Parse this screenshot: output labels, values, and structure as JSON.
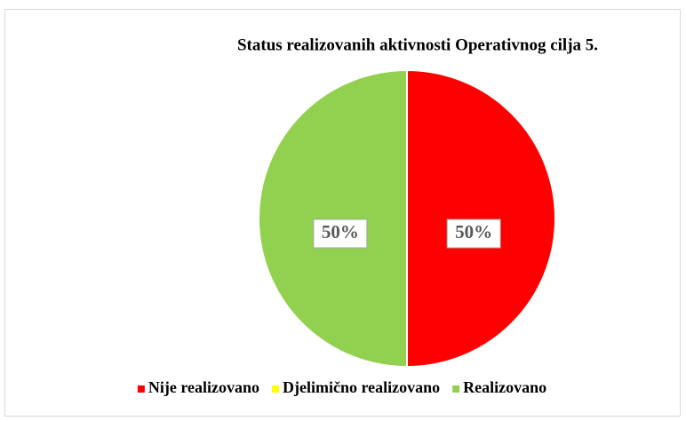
{
  "chart_data": {
    "type": "pie",
    "title": "Status realizovanih aktivnosti Operativnog cilja 5.",
    "categories": [
      "Nije realizovano",
      "Djelimično realizovano",
      "Realizovano"
    ],
    "values": [
      50,
      0,
      50
    ],
    "value_labels": [
      "50%",
      null,
      "50%"
    ],
    "colors": [
      "#ff0000",
      "#ffff00",
      "#92d050"
    ],
    "legend": "bottom"
  }
}
